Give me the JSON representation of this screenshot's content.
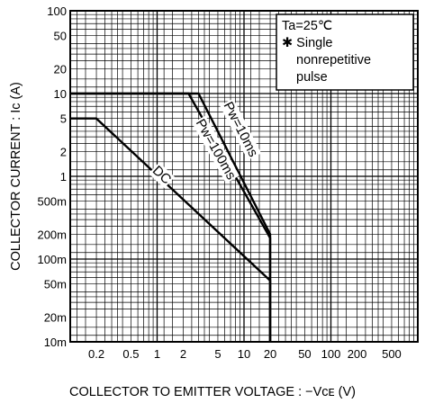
{
  "chart_data": {
    "type": "line",
    "title": "",
    "xlabel": "COLLECTOR TO EMITTER VOLTAGE : −Vᴄᴇ (V)",
    "ylabel": "COLLECTOR CURRENT : Iᴄ (A)",
    "x_scale": "log",
    "y_scale": "log",
    "xlim": [
      0.1,
      1000
    ],
    "ylim": [
      0.01,
      100
    ],
    "x_ticks": [
      {
        "value": 0.2,
        "label": "0.2"
      },
      {
        "value": 0.5,
        "label": "0.5"
      },
      {
        "value": 1,
        "label": "1"
      },
      {
        "value": 2,
        "label": "2"
      },
      {
        "value": 5,
        "label": "5"
      },
      {
        "value": 10,
        "label": "10"
      },
      {
        "value": 20,
        "label": "20"
      },
      {
        "value": 50,
        "label": "50"
      },
      {
        "value": 100,
        "label": "100"
      },
      {
        "value": 200,
        "label": "200"
      },
      {
        "value": 500,
        "label": "500"
      }
    ],
    "y_ticks": [
      {
        "value": 100,
        "label": "100"
      },
      {
        "value": 50,
        "label": "50"
      },
      {
        "value": 20,
        "label": "20"
      },
      {
        "value": 10,
        "label": "10"
      },
      {
        "value": 5,
        "label": "5"
      },
      {
        "value": 2,
        "label": "2"
      },
      {
        "value": 1,
        "label": "1"
      },
      {
        "value": 0.5,
        "label": "500m"
      },
      {
        "value": 0.2,
        "label": "200m"
      },
      {
        "value": 0.1,
        "label": "100m"
      },
      {
        "value": 0.05,
        "label": "50m"
      },
      {
        "value": 0.02,
        "label": "20m"
      },
      {
        "value": 0.01,
        "label": "10m"
      }
    ],
    "grid": true,
    "series": [
      {
        "name": "DC",
        "label": "DC",
        "x": [
          0.1,
          0.2,
          20,
          20
        ],
        "y": [
          5,
          5,
          0.055,
          0.01
        ],
        "label_at": {
          "x": 1.05,
          "y": 0.95
        }
      },
      {
        "name": "Pw=100ms",
        "label": "Pw=100ms",
        "x": [
          0.1,
          2.3,
          20,
          20
        ],
        "y": [
          10,
          10,
          0.18,
          0.01
        ],
        "label_at": {
          "x": 4.3,
          "y": 2.0
        }
      },
      {
        "name": "Pw=10ms",
        "label": "Pw=10ms",
        "x": [
          0.1,
          3.0,
          20,
          20
        ],
        "y": [
          10,
          10,
          0.2,
          0.01
        ],
        "label_at": {
          "x": 8.3,
          "y": 3.5
        }
      }
    ],
    "legend": {
      "position": "top-right",
      "lines": [
        "Ta=25℃",
        "✱ Single",
        "nonrepetitive",
        "pulse"
      ]
    }
  }
}
